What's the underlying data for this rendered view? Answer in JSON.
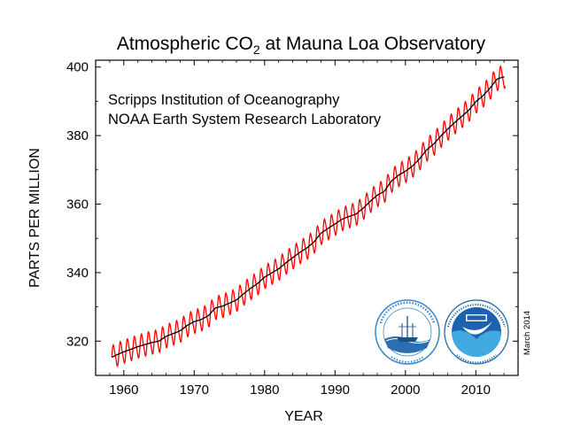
{
  "chart_data": {
    "type": "line",
    "title_main": "Atmospheric CO",
    "title_sub": "2",
    "title_rest": " at Mauna Loa Observatory",
    "xlabel": "YEAR",
    "ylabel": "PARTS PER MILLION",
    "credit_line1": "Scripps Institution of Oceanography",
    "credit_line2": "NOAA Earth System Research Laboratory",
    "date_note": "March 2014",
    "logos": [
      "scripps-seal",
      "noaa-logo"
    ],
    "xlim": [
      1956,
      2016
    ],
    "ylim": [
      310,
      402
    ],
    "xticks": [
      1960,
      1970,
      1980,
      1990,
      2000,
      2010
    ],
    "yticks": [
      320,
      340,
      360,
      380,
      400
    ],
    "grid": false,
    "colors": {
      "monthly": "#ff0000",
      "trend": "#000000"
    },
    "series": [
      {
        "style": "monthly-mean",
        "x": [
          1958.3,
          1959,
          1960,
          1961,
          1962,
          1963,
          1964,
          1965,
          1966,
          1967,
          1968,
          1969,
          1970,
          1971,
          1972,
          1973,
          1974,
          1975,
          1976,
          1977,
          1978,
          1979,
          1980,
          1981,
          1982,
          1983,
          1984,
          1985,
          1986,
          1987,
          1988,
          1989,
          1990,
          1991,
          1992,
          1993,
          1994,
          1995,
          1996,
          1997,
          1998,
          1999,
          2000,
          2001,
          2002,
          2003,
          2004,
          2005,
          2006,
          2007,
          2008,
          2009,
          2010,
          2011,
          2012,
          2013,
          2014.2
        ],
        "y": [
          315.3,
          316.0,
          316.9,
          317.6,
          318.4,
          319.0,
          319.6,
          320.0,
          321.4,
          322.2,
          323.0,
          324.6,
          325.7,
          326.3,
          327.4,
          329.7,
          330.2,
          331.1,
          332.0,
          333.8,
          335.4,
          336.8,
          338.7,
          339.9,
          341.1,
          342.8,
          344.4,
          345.9,
          347.2,
          348.9,
          351.5,
          352.9,
          354.2,
          355.6,
          356.4,
          357.1,
          358.8,
          360.8,
          362.6,
          363.7,
          366.7,
          368.4,
          369.6,
          371.1,
          373.2,
          375.8,
          377.5,
          379.8,
          381.9,
          383.8,
          385.6,
          387.4,
          389.9,
          391.6,
          393.8,
          396.5,
          397.3
        ],
        "seasonal_amplitude_ppm": 3.2
      },
      {
        "style": "seasonally-corrected-trend",
        "x": [
          1958.3,
          1959,
          1960,
          1961,
          1962,
          1963,
          1964,
          1965,
          1966,
          1967,
          1968,
          1969,
          1970,
          1971,
          1972,
          1973,
          1974,
          1975,
          1976,
          1977,
          1978,
          1979,
          1980,
          1981,
          1982,
          1983,
          1984,
          1985,
          1986,
          1987,
          1988,
          1989,
          1990,
          1991,
          1992,
          1993,
          1994,
          1995,
          1996,
          1997,
          1998,
          1999,
          2000,
          2001,
          2002,
          2003,
          2004,
          2005,
          2006,
          2007,
          2008,
          2009,
          2010,
          2011,
          2012,
          2013,
          2014.2
        ],
        "y": [
          315.3,
          316.0,
          316.9,
          317.6,
          318.4,
          319.0,
          319.6,
          320.0,
          321.4,
          322.2,
          323.0,
          324.6,
          325.7,
          326.3,
          327.4,
          329.7,
          330.2,
          331.1,
          332.0,
          333.8,
          335.4,
          336.8,
          338.7,
          339.9,
          341.1,
          342.8,
          344.4,
          345.9,
          347.2,
          348.9,
          351.5,
          352.9,
          354.2,
          355.6,
          356.4,
          357.1,
          358.8,
          360.8,
          362.6,
          363.7,
          366.7,
          368.4,
          369.6,
          371.1,
          373.2,
          375.8,
          377.5,
          379.8,
          381.9,
          383.8,
          385.6,
          387.4,
          389.9,
          391.6,
          393.8,
          396.5,
          397.3
        ]
      }
    ]
  }
}
